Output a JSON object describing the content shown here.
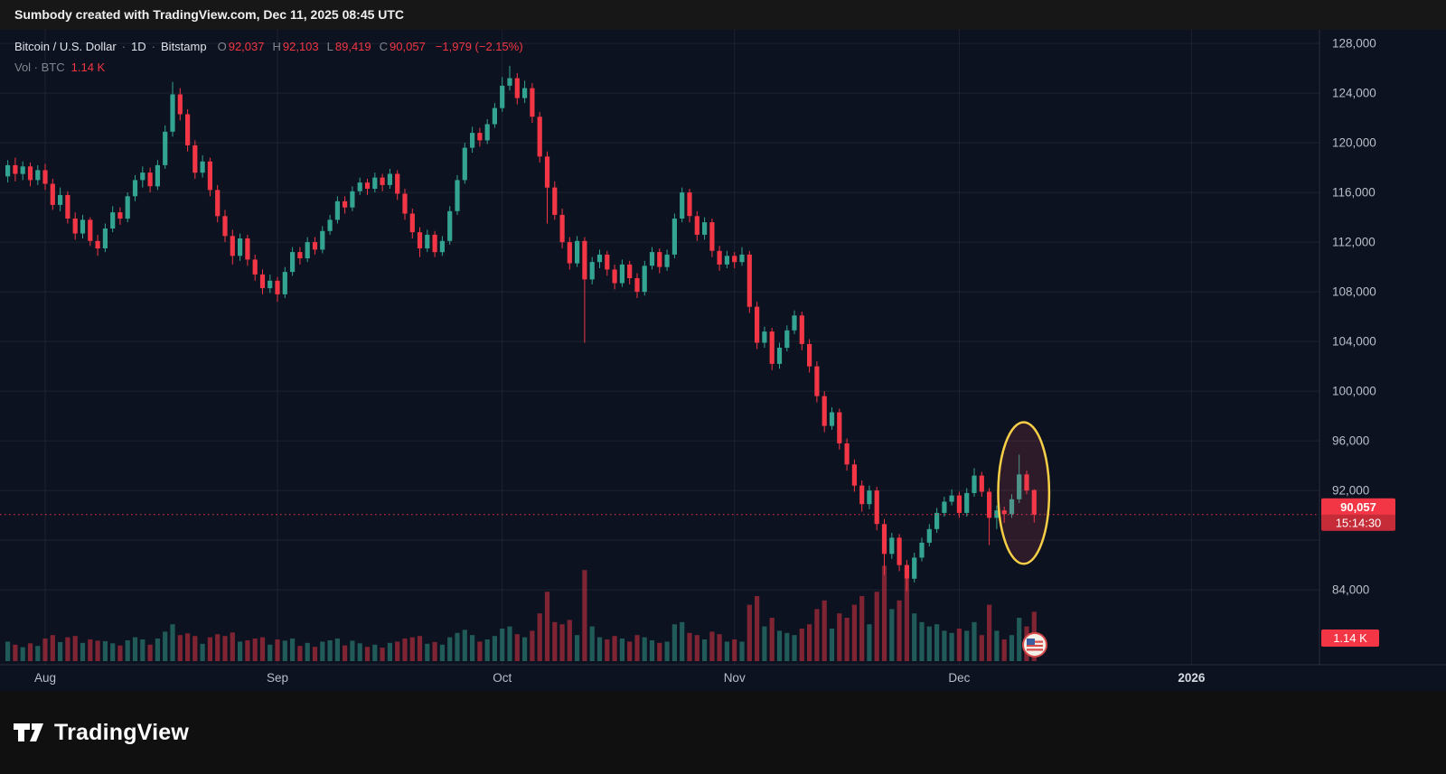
{
  "attribution": {
    "text": "Sumbody created with TradingView.com, Dec 11, 2025 08:45 UTC"
  },
  "legend": {
    "symbol": "Bitcoin / U.S. Dollar",
    "separator": "·",
    "interval": "1D",
    "exchange": "Bitstamp",
    "ohlc": [
      {
        "label": "O",
        "value": "92,037"
      },
      {
        "label": "H",
        "value": "92,103"
      },
      {
        "label": "L",
        "value": "89,419"
      },
      {
        "label": "C",
        "value": "90,057"
      }
    ],
    "change": "−1,979 (−2.15%)",
    "volume_label": "Vol · BTC",
    "volume_value": "1.14 K"
  },
  "price_axis": {
    "ticks": [
      {
        "v": 128000,
        "label": "128,000"
      },
      {
        "v": 124000,
        "label": "124,000"
      },
      {
        "v": 120000,
        "label": "120,000"
      },
      {
        "v": 116000,
        "label": "116,000"
      },
      {
        "v": 112000,
        "label": "112,000"
      },
      {
        "v": 108000,
        "label": "108,000"
      },
      {
        "v": 104000,
        "label": "104,000"
      },
      {
        "v": 100000,
        "label": "100,000"
      },
      {
        "v": 96000,
        "label": "96,000"
      },
      {
        "v": 92000,
        "label": "92,000"
      },
      {
        "v": 88000,
        "label": ""
      },
      {
        "v": 84000,
        "label": "84,000"
      }
    ],
    "current_price_label": "90,057",
    "countdown": "15:14:30",
    "volume_badge": "1.14 K"
  },
  "time_axis": {
    "ticks": [
      {
        "label": "Aug",
        "index": 5,
        "major": false
      },
      {
        "label": "Sep",
        "index": 36,
        "major": false
      },
      {
        "label": "Oct",
        "index": 66,
        "major": false
      },
      {
        "label": "Nov",
        "index": 97,
        "major": false
      },
      {
        "label": "Dec",
        "index": 127,
        "major": false
      },
      {
        "label": "2026",
        "index": 158,
        "major": true
      }
    ]
  },
  "footer": {
    "brand": "TradingView"
  },
  "icons": {
    "event_icons": [
      "sparkle-rocket-icon",
      "us-flag-icon"
    ]
  },
  "colors": {
    "bg": "#0d1220",
    "up": "#33a392",
    "down": "#f23645",
    "vol_up": "rgba(51,163,146,0.5)",
    "vol_down": "rgba(242,54,69,0.5)",
    "grid": "rgba(255,255,255,0.07)",
    "axis_text": "#b9bec9",
    "axis_text_major": "#d6dae2",
    "axis_border": "rgba(255,255,255,0.12)",
    "badge_text": "#ffffff",
    "annotation_yellow": "#f6cf47"
  },
  "chart_data": {
    "type": "candlestick",
    "title": "Bitcoin / U.S. Dollar, 1D, Bitstamp",
    "start_date": "2025-07-27",
    "interval": "1 day",
    "columns": [
      "open",
      "high",
      "low",
      "close",
      "volume_kBTC"
    ],
    "price_unit": "USD thousands",
    "ylim": [
      78000,
      129100
    ],
    "price_line": 90057,
    "last_ohlc": {
      "open": 92037,
      "high": 92103,
      "low": 89419,
      "close": 90057,
      "change": -1979,
      "change_pct": -2.15
    },
    "annotations": [
      {
        "type": "ellipse",
        "center_index": 135.6,
        "center_price": 91800,
        "rx_days": 3.4,
        "ry_price": 5700,
        "stroke": "#f6cf47",
        "fill": "rgba(226,72,98,0.16)",
        "note": "highlight of recent candles"
      }
    ],
    "candles": [
      [
        117.3,
        118.6,
        116.8,
        118.2,
        0.45
      ],
      [
        118.2,
        118.8,
        116.9,
        117.5,
        0.38
      ],
      [
        117.5,
        118.5,
        117.0,
        118.1,
        0.32
      ],
      [
        118.1,
        118.4,
        116.5,
        117.0,
        0.41
      ],
      [
        117.0,
        118.2,
        116.6,
        117.8,
        0.35
      ],
      [
        117.8,
        118.3,
        116.2,
        116.7,
        0.52
      ],
      [
        116.7,
        117.1,
        114.6,
        115.0,
        0.6
      ],
      [
        115.0,
        116.4,
        114.5,
        115.8,
        0.44
      ],
      [
        115.8,
        116.1,
        113.5,
        113.9,
        0.55
      ],
      [
        113.9,
        114.4,
        112.2,
        112.7,
        0.58
      ],
      [
        112.7,
        114.2,
        112.3,
        113.8,
        0.42
      ],
      [
        113.8,
        114.0,
        111.7,
        112.1,
        0.5
      ],
      [
        112.1,
        112.6,
        110.9,
        111.5,
        0.47
      ],
      [
        111.5,
        113.5,
        111.2,
        113.1,
        0.46
      ],
      [
        113.1,
        114.9,
        112.8,
        114.4,
        0.41
      ],
      [
        114.4,
        114.8,
        113.4,
        113.9,
        0.36
      ],
      [
        113.9,
        116.0,
        113.6,
        115.7,
        0.48
      ],
      [
        115.7,
        117.4,
        115.3,
        117.0,
        0.55
      ],
      [
        117.0,
        118.1,
        116.4,
        117.6,
        0.5
      ],
      [
        117.6,
        118.0,
        116.0,
        116.5,
        0.38
      ],
      [
        116.5,
        118.6,
        116.2,
        118.2,
        0.52
      ],
      [
        118.2,
        121.4,
        117.9,
        120.9,
        0.68
      ],
      [
        120.9,
        124.9,
        120.5,
        123.9,
        0.85
      ],
      [
        123.9,
        124.4,
        121.8,
        122.3,
        0.6
      ],
      [
        122.3,
        122.7,
        119.3,
        119.8,
        0.64
      ],
      [
        119.8,
        120.2,
        117.1,
        117.6,
        0.58
      ],
      [
        117.6,
        119.0,
        117.2,
        118.5,
        0.4
      ],
      [
        118.5,
        118.8,
        115.7,
        116.2,
        0.55
      ],
      [
        116.2,
        116.6,
        113.6,
        114.1,
        0.62
      ],
      [
        114.1,
        114.6,
        112.0,
        112.5,
        0.58
      ],
      [
        112.5,
        113.0,
        110.2,
        110.9,
        0.66
      ],
      [
        110.9,
        112.7,
        110.5,
        112.3,
        0.45
      ],
      [
        112.3,
        112.6,
        110.1,
        110.6,
        0.48
      ],
      [
        110.6,
        111.0,
        108.9,
        109.4,
        0.52
      ],
      [
        109.4,
        109.8,
        107.8,
        108.3,
        0.55
      ],
      [
        108.3,
        109.4,
        107.9,
        108.9,
        0.38
      ],
      [
        108.9,
        109.2,
        107.2,
        107.8,
        0.5
      ],
      [
        107.8,
        110.0,
        107.5,
        109.6,
        0.47
      ],
      [
        109.6,
        111.6,
        109.3,
        111.2,
        0.52
      ],
      [
        111.2,
        111.6,
        110.2,
        110.7,
        0.35
      ],
      [
        110.7,
        112.4,
        110.4,
        112.0,
        0.42
      ],
      [
        112.0,
        112.4,
        111.0,
        111.4,
        0.33
      ],
      [
        111.4,
        113.3,
        111.1,
        112.9,
        0.45
      ],
      [
        112.9,
        114.2,
        112.6,
        113.8,
        0.48
      ],
      [
        113.8,
        115.7,
        113.5,
        115.3,
        0.52
      ],
      [
        115.3,
        115.7,
        114.3,
        114.8,
        0.36
      ],
      [
        114.8,
        116.5,
        114.5,
        116.1,
        0.47
      ],
      [
        116.1,
        117.2,
        115.8,
        116.8,
        0.41
      ],
      [
        116.8,
        117.1,
        115.8,
        116.3,
        0.33
      ],
      [
        116.3,
        117.6,
        116.0,
        117.2,
        0.38
      ],
      [
        117.2,
        117.5,
        116.1,
        116.6,
        0.31
      ],
      [
        116.6,
        117.9,
        116.3,
        117.5,
        0.42
      ],
      [
        117.5,
        117.8,
        115.4,
        115.9,
        0.45
      ],
      [
        115.9,
        116.3,
        113.8,
        114.3,
        0.52
      ],
      [
        114.3,
        114.7,
        112.3,
        112.8,
        0.55
      ],
      [
        112.8,
        113.2,
        110.8,
        111.5,
        0.58
      ],
      [
        111.5,
        113.0,
        111.2,
        112.6,
        0.4
      ],
      [
        112.6,
        112.9,
        110.8,
        111.2,
        0.44
      ],
      [
        111.2,
        112.5,
        110.9,
        112.1,
        0.38
      ],
      [
        112.1,
        114.9,
        111.8,
        114.5,
        0.55
      ],
      [
        114.5,
        117.4,
        114.2,
        117.0,
        0.65
      ],
      [
        117.0,
        120.0,
        116.7,
        119.6,
        0.72
      ],
      [
        119.6,
        121.3,
        119.2,
        120.8,
        0.6
      ],
      [
        120.8,
        121.2,
        119.7,
        120.2,
        0.45
      ],
      [
        120.2,
        121.9,
        119.9,
        121.5,
        0.5
      ],
      [
        121.5,
        123.2,
        121.2,
        122.8,
        0.58
      ],
      [
        122.8,
        125.3,
        122.5,
        124.6,
        0.75
      ],
      [
        124.6,
        126.2,
        124.2,
        125.2,
        0.8
      ],
      [
        125.2,
        125.6,
        123.1,
        123.6,
        0.62
      ],
      [
        123.6,
        125.0,
        123.2,
        124.4,
        0.55
      ],
      [
        124.4,
        124.8,
        121.6,
        122.1,
        0.7
      ],
      [
        122.1,
        122.5,
        118.4,
        118.9,
        1.1
      ],
      [
        118.9,
        119.3,
        113.5,
        116.4,
        1.6
      ],
      [
        116.4,
        116.9,
        113.8,
        114.2,
        0.9
      ],
      [
        114.2,
        114.7,
        111.5,
        112.0,
        0.85
      ],
      [
        112.0,
        112.4,
        109.8,
        110.3,
        0.95
      ],
      [
        110.3,
        112.5,
        110.0,
        112.1,
        0.6
      ],
      [
        112.1,
        112.4,
        103.9,
        109.0,
        2.1
      ],
      [
        109.0,
        110.8,
        108.6,
        110.4,
        0.8
      ],
      [
        110.4,
        111.4,
        109.9,
        111.0,
        0.55
      ],
      [
        111.0,
        111.3,
        109.3,
        109.8,
        0.5
      ],
      [
        109.8,
        110.2,
        108.2,
        108.7,
        0.58
      ],
      [
        108.7,
        110.6,
        108.4,
        110.2,
        0.52
      ],
      [
        110.2,
        110.5,
        108.6,
        109.1,
        0.45
      ],
      [
        109.1,
        109.5,
        107.5,
        108.0,
        0.6
      ],
      [
        108.0,
        110.5,
        107.7,
        110.1,
        0.55
      ],
      [
        110.1,
        111.6,
        109.8,
        111.2,
        0.48
      ],
      [
        111.2,
        111.5,
        109.5,
        110.0,
        0.42
      ],
      [
        110.0,
        111.4,
        109.7,
        111.0,
        0.45
      ],
      [
        111.0,
        114.3,
        110.7,
        113.9,
        0.85
      ],
      [
        113.9,
        116.4,
        113.6,
        116.0,
        0.9
      ],
      [
        116.0,
        116.3,
        113.6,
        114.1,
        0.65
      ],
      [
        114.1,
        114.5,
        112.1,
        112.6,
        0.6
      ],
      [
        112.6,
        114.0,
        112.2,
        113.6,
        0.5
      ],
      [
        113.6,
        113.9,
        110.8,
        111.3,
        0.68
      ],
      [
        111.3,
        111.7,
        109.7,
        110.2,
        0.62
      ],
      [
        110.2,
        111.3,
        109.9,
        110.9,
        0.45
      ],
      [
        110.9,
        111.2,
        109.9,
        110.4,
        0.5
      ],
      [
        110.4,
        111.6,
        110.1,
        111.0,
        0.45
      ],
      [
        111.0,
        111.3,
        106.3,
        106.8,
        1.3
      ],
      [
        106.8,
        107.2,
        103.4,
        103.9,
        1.5
      ],
      [
        103.9,
        105.2,
        103.5,
        104.8,
        0.8
      ],
      [
        104.8,
        105.1,
        101.7,
        102.2,
        1.0
      ],
      [
        102.2,
        103.9,
        101.8,
        103.5,
        0.7
      ],
      [
        103.5,
        105.3,
        103.2,
        104.9,
        0.65
      ],
      [
        104.9,
        106.5,
        104.6,
        106.1,
        0.6
      ],
      [
        106.1,
        106.4,
        103.3,
        103.8,
        0.75
      ],
      [
        103.8,
        104.2,
        101.5,
        102.0,
        0.85
      ],
      [
        102.0,
        102.4,
        99.1,
        99.6,
        1.2
      ],
      [
        99.6,
        100.0,
        96.7,
        97.2,
        1.4
      ],
      [
        97.2,
        98.7,
        96.9,
        98.3,
        0.75
      ],
      [
        98.3,
        98.6,
        95.3,
        95.8,
        1.1
      ],
      [
        95.8,
        96.2,
        93.6,
        94.1,
        1.0
      ],
      [
        94.1,
        94.5,
        91.9,
        92.4,
        1.3
      ],
      [
        92.4,
        92.8,
        90.3,
        90.9,
        1.5
      ],
      [
        90.9,
        92.4,
        90.5,
        92.0,
        0.85
      ],
      [
        92.0,
        92.3,
        88.8,
        89.3,
        1.6
      ],
      [
        89.3,
        89.7,
        85.2,
        86.9,
        2.2
      ],
      [
        86.9,
        88.6,
        86.5,
        88.2,
        1.2
      ],
      [
        88.2,
        88.5,
        85.5,
        86.0,
        1.4
      ],
      [
        86.0,
        86.4,
        83.9,
        84.9,
        1.9
      ],
      [
        84.9,
        87.0,
        84.6,
        86.6,
        1.1
      ],
      [
        86.6,
        88.2,
        86.3,
        87.8,
        0.9
      ],
      [
        87.8,
        89.3,
        87.5,
        88.9,
        0.8
      ],
      [
        88.9,
        90.6,
        88.6,
        90.2,
        0.85
      ],
      [
        90.2,
        91.5,
        89.9,
        91.1,
        0.7
      ],
      [
        91.1,
        92.1,
        90.8,
        91.6,
        0.65
      ],
      [
        91.6,
        91.9,
        89.8,
        90.2,
        0.75
      ],
      [
        90.2,
        92.2,
        89.9,
        91.8,
        0.7
      ],
      [
        91.8,
        93.8,
        91.5,
        93.2,
        0.9
      ],
      [
        93.2,
        93.5,
        91.5,
        91.9,
        0.6
      ],
      [
        91.9,
        92.2,
        87.6,
        89.8,
        1.3
      ],
      [
        89.8,
        90.8,
        88.9,
        90.4,
        0.7
      ],
      [
        90.4,
        90.7,
        89.4,
        90.1,
        0.5
      ],
      [
        90.1,
        91.7,
        89.8,
        91.3,
        0.6
      ],
      [
        91.3,
        94.9,
        91.0,
        93.3,
        1.0
      ],
      [
        93.3,
        93.6,
        91.7,
        92.0,
        0.8
      ],
      [
        92.037,
        92.103,
        89.419,
        90.057,
        1.14
      ]
    ]
  }
}
